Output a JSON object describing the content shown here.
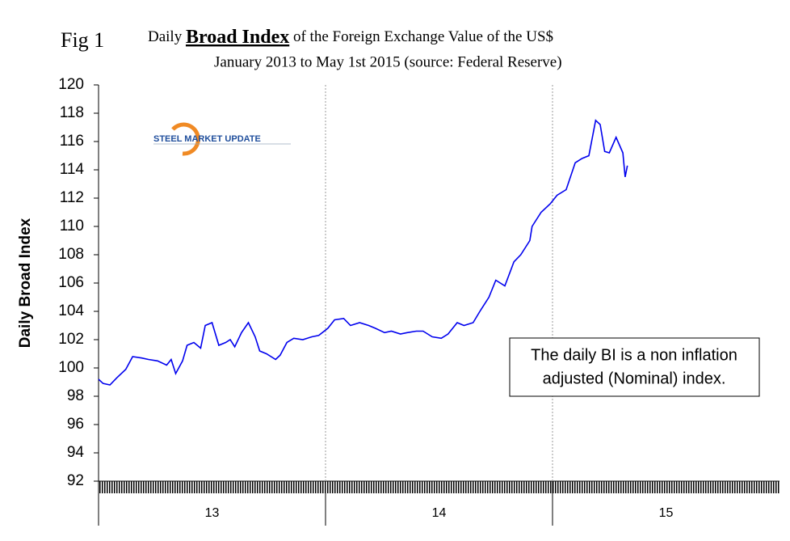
{
  "chart_data": {
    "type": "line",
    "figure_label": "Fig 1",
    "title_parts": [
      "Daily",
      "Broad Index",
      "of the Foreign Exchange Value of the US$"
    ],
    "subtitle": "January 2013 to May 1st 2015 (source: Federal Reserve)",
    "ylabel": "Daily Broad Index",
    "logo": "STEEL MARKET UPDATE",
    "annotation": [
      "The daily BI is a non inflation",
      "adjusted (Nominal) index."
    ],
    "color": "#0000ee",
    "xlim": [
      13,
      16
    ],
    "xticks": [
      13,
      14,
      15
    ],
    "xgrid": true,
    "ylim": [
      92,
      120
    ],
    "yticks": [
      92,
      94,
      96,
      98,
      100,
      102,
      104,
      106,
      108,
      110,
      112,
      114,
      116,
      118,
      120
    ],
    "x": [
      13.0,
      13.02,
      13.05,
      13.08,
      13.12,
      13.15,
      13.19,
      13.22,
      13.26,
      13.3,
      13.32,
      13.34,
      13.37,
      13.39,
      13.42,
      13.45,
      13.47,
      13.5,
      13.53,
      13.56,
      13.58,
      13.6,
      13.63,
      13.66,
      13.69,
      13.71,
      13.74,
      13.78,
      13.8,
      13.83,
      13.86,
      13.9,
      13.94,
      13.97,
      14.01,
      14.04,
      14.08,
      14.11,
      14.15,
      14.19,
      14.22,
      14.26,
      14.29,
      14.33,
      14.36,
      14.4,
      14.43,
      14.47,
      14.51,
      14.54,
      14.58,
      14.61,
      14.65,
      14.68,
      14.72,
      14.75,
      14.79,
      14.83,
      14.86,
      14.9,
      14.91,
      14.95,
      14.99,
      15.02,
      15.06,
      15.1,
      15.13,
      15.16,
      15.19,
      15.21,
      15.23,
      15.25,
      15.28,
      15.31,
      15.32,
      15.33
    ],
    "values": [
      99.2,
      98.9,
      98.8,
      99.3,
      99.9,
      100.8,
      100.7,
      100.6,
      100.5,
      100.2,
      100.6,
      99.6,
      100.5,
      101.6,
      101.8,
      101.4,
      103.0,
      103.2,
      101.6,
      101.8,
      102.0,
      101.5,
      102.5,
      103.2,
      102.2,
      101.2,
      101.0,
      100.6,
      100.9,
      101.8,
      102.1,
      102.0,
      102.2,
      102.3,
      102.8,
      103.4,
      103.5,
      103.0,
      103.2,
      103.0,
      102.8,
      102.5,
      102.6,
      102.4,
      102.5,
      102.6,
      102.6,
      102.2,
      102.1,
      102.4,
      103.2,
      103.0,
      103.2,
      104.0,
      105.0,
      106.2,
      105.8,
      107.5,
      108.0,
      109.0,
      110.0,
      111.0,
      111.6,
      112.2,
      112.6,
      114.5,
      114.8,
      115.0,
      117.5,
      117.2,
      115.3,
      115.2,
      116.3,
      115.2,
      113.5,
      114.3
    ]
  }
}
